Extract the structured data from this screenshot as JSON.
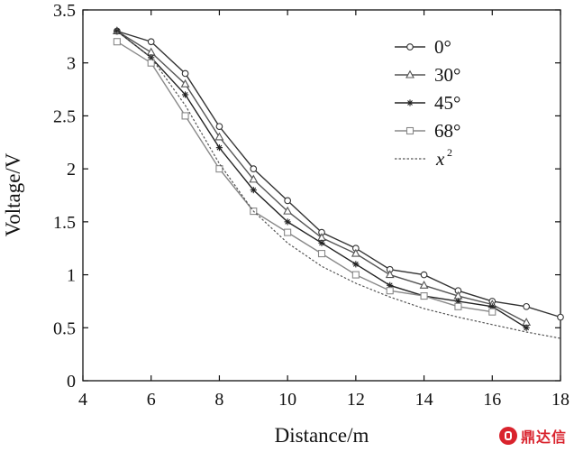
{
  "chart_data": {
    "type": "line",
    "xlabel": "Distance/m",
    "ylabel": "Voltage/V",
    "xlim": [
      4,
      18
    ],
    "ylim": [
      0,
      3.5
    ],
    "x_ticks": [
      "4",
      "6",
      "8",
      "10",
      "12",
      "14",
      "16",
      "18"
    ],
    "y_ticks": [
      "0",
      "0.5",
      "1",
      "1.5",
      "2",
      "2.5",
      "3",
      "3.5"
    ],
    "grid": false,
    "legend_position": "top-right",
    "series": [
      {
        "name": "0°",
        "marker": "circle",
        "color": "#333333",
        "x": [
          5,
          6,
          7,
          8,
          9,
          10,
          11,
          12,
          13,
          14,
          15,
          16,
          17,
          18
        ],
        "y": [
          3.3,
          3.2,
          2.9,
          2.4,
          2.0,
          1.7,
          1.4,
          1.25,
          1.05,
          1.0,
          0.85,
          0.75,
          0.7,
          0.6
        ]
      },
      {
        "name": "30°",
        "marker": "triangle",
        "color": "#555555",
        "x": [
          5,
          6,
          7,
          8,
          9,
          10,
          11,
          12,
          13,
          14,
          15,
          16,
          17
        ],
        "y": [
          3.3,
          3.1,
          2.8,
          2.3,
          1.9,
          1.6,
          1.35,
          1.2,
          1.0,
          0.9,
          0.8,
          0.72,
          0.55
        ]
      },
      {
        "name": "45°",
        "marker": "asterisk",
        "color": "#222222",
        "x": [
          5,
          6,
          7,
          8,
          9,
          10,
          11,
          12,
          13,
          14,
          15,
          16,
          17
        ],
        "y": [
          3.3,
          3.05,
          2.7,
          2.2,
          1.8,
          1.5,
          1.3,
          1.1,
          0.9,
          0.8,
          0.75,
          0.7,
          0.5
        ]
      },
      {
        "name": "68°",
        "marker": "square",
        "color": "#888888",
        "x": [
          5,
          6,
          7,
          8,
          9,
          10,
          11,
          12,
          13,
          14,
          15,
          16
        ],
        "y": [
          3.2,
          3.0,
          2.5,
          2.0,
          1.6,
          1.4,
          1.2,
          1.0,
          0.85,
          0.8,
          0.7,
          0.65
        ]
      },
      {
        "name": "x",
        "name_superscript": "2",
        "marker": "none",
        "dashed": true,
        "color": "#555555",
        "x": [
          5,
          6,
          7,
          8,
          9,
          10,
          11,
          12,
          13,
          14,
          15,
          16,
          17,
          18
        ],
        "y": [
          3.3,
          3.05,
          2.6,
          2.05,
          1.6,
          1.3,
          1.08,
          0.92,
          0.79,
          0.68,
          0.6,
          0.53,
          0.46,
          0.4
        ]
      }
    ]
  },
  "watermark": {
    "text": "鼎达信"
  }
}
